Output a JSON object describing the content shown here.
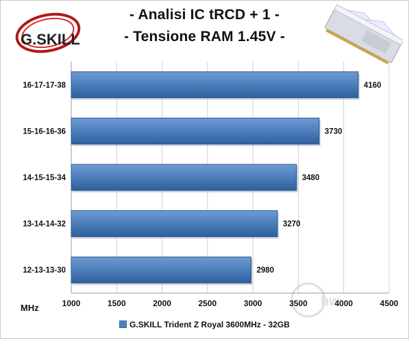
{
  "chart_data": {
    "type": "bar",
    "orientation": "horizontal",
    "title": "- Analisi IC  tRCD + 1 -",
    "subtitle": "- Tensione RAM 1.45V -",
    "xlabel": "MHz",
    "categories": [
      "16-17-17-38",
      "15-16-16-36",
      "14-15-15-34",
      "13-14-14-32",
      "12-13-13-30"
    ],
    "series": [
      {
        "name": "G.SKILL Trident Z Royal 3600MHz - 32GB",
        "values": [
          4160,
          3730,
          3480,
          3270,
          2980
        ]
      }
    ],
    "xlim": [
      1000,
      4500
    ],
    "xticks": [
      1000,
      1500,
      2000,
      2500,
      3000,
      3500,
      4000,
      4500
    ],
    "grid": true,
    "legend_position": "bottom",
    "bar_color": "#4f81bd"
  },
  "brand": {
    "logo_text": "G.SKILL",
    "watermark_text": "hwupgrade"
  }
}
